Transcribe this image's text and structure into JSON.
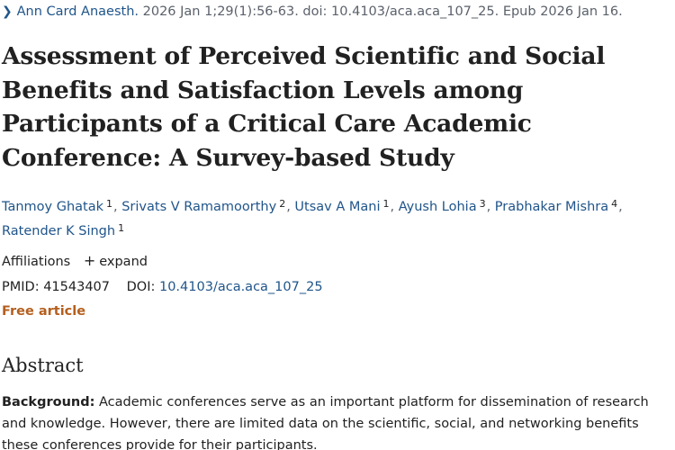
{
  "citation": {
    "journal": "Ann Card Anaesth.",
    "details": "2026 Jan 1;29(1):56-63. doi: 10.4103/aca.aca_107_25. Epub 2026 Jan 16."
  },
  "article": {
    "title": "Assessment of Perceived Scientific and Social Benefits and Satisfaction Levels among Participants of a Critical Care Academic Conference: A Survey-based Study"
  },
  "authors": [
    {
      "name": "Tanmoy Ghatak",
      "affiliation": "1"
    },
    {
      "name": "Srivats V Ramamoorthy",
      "affiliation": "2"
    },
    {
      "name": "Utsav A Mani",
      "affiliation": "1"
    },
    {
      "name": "Ayush Lohia",
      "affiliation": "3"
    },
    {
      "name": "Prabhakar Mishra",
      "affiliation": "4"
    },
    {
      "name": "Ratender K Singh",
      "affiliation": "1"
    }
  ],
  "affiliations": {
    "label": "Affiliations",
    "expand_label": "expand"
  },
  "identifiers": {
    "pmid_label": "PMID:",
    "pmid": "41543407",
    "doi_label": "DOI:",
    "doi": "10.4103/aca.aca_107_25"
  },
  "free_article_label": "Free article",
  "abstract": {
    "heading": "Abstract",
    "background_label": "Background:",
    "background_text": "Academic conferences serve as an important platform for dissemination of research and knowledge. However, there are limited data on the scientific, social, and networking benefits these conferences provide for their participants."
  }
}
